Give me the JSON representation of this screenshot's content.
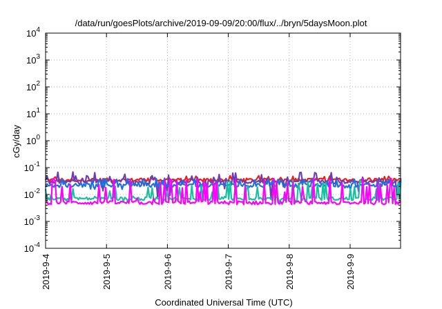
{
  "chart_data": {
    "type": "line",
    "title": "/data/run/goesPlots/archive/2019-09-09/20:00/flux/../bryn/5daysMoon.plot",
    "xlabel": "Coordinated Universal Time (UTC)",
    "ylabel": "cGy/day",
    "yscale": "log",
    "ylim": [
      0.0001,
      10000
    ],
    "xlim": [
      "2019-09-04",
      "2019-09-09 20:00"
    ],
    "grid": true,
    "legend": "none",
    "x_ticks": [
      "2019-9-4",
      "2019-9-5",
      "2019-9-6",
      "2019-9-7",
      "2019-9-8",
      "2019-9-9"
    ],
    "y_ticks": [
      {
        "base": "10",
        "exp": "-4",
        "value": 0.0001
      },
      {
        "base": "10",
        "exp": "-3",
        "value": 0.001
      },
      {
        "base": "10",
        "exp": "-2",
        "value": 0.01
      },
      {
        "base": "10",
        "exp": "-1",
        "value": 0.1
      },
      {
        "base": "10",
        "exp": "0",
        "value": 1
      },
      {
        "base": "10",
        "exp": "1",
        "value": 10
      },
      {
        "base": "10",
        "exp": "2",
        "value": 100
      },
      {
        "base": "10",
        "exp": "3",
        "value": 1000
      },
      {
        "base": "10",
        "exp": "4",
        "value": 10000
      }
    ],
    "series": [
      {
        "color": "#ee1c1c",
        "baseline": 0.035,
        "min": 0.025,
        "max": 0.05
      },
      {
        "color": "#6a3fb5",
        "baseline": 0.03,
        "min": 0.005,
        "max": 0.07
      },
      {
        "color": "#1f6fe0",
        "baseline": 0.022,
        "min": 0.015,
        "max": 0.04
      },
      {
        "color": "#1abfa0",
        "baseline": 0.007,
        "min": 0.005,
        "max": 0.035
      },
      {
        "color": "#ff00ff",
        "baseline": 0.005,
        "min": 0.004,
        "max": 0.04
      }
    ]
  }
}
